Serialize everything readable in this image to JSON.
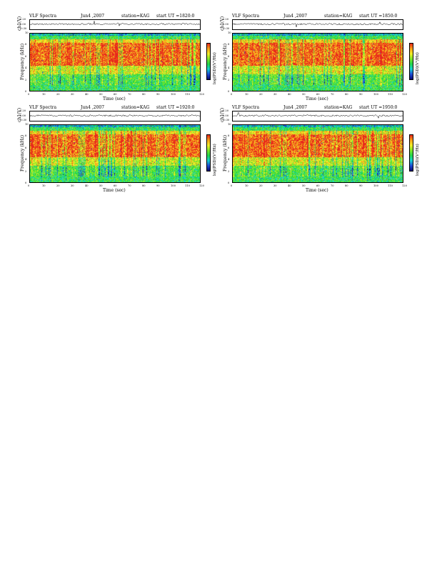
{
  "panels": [
    {
      "title": "VLF Spectra",
      "date": "Jun4 ,2007",
      "station": "station=KAG",
      "start": "start  UT  =1820:0",
      "seed": 11
    },
    {
      "title": "VLF Spectra",
      "date": "Jun4 ,2007",
      "station": "station=KAG",
      "start": "start  UT  =1850:0",
      "seed": 23
    },
    {
      "title": "VLF Spectra",
      "date": "Jun4 ,2007",
      "station": "station=KAG",
      "start": "start  UT  =1920:0",
      "seed": 37
    },
    {
      "title": "VLF Spectra",
      "date": "Jun4 ,2007",
      "station": "station=KAG",
      "start": "start  UT  =1950:0",
      "seed": 53
    }
  ],
  "wave_axis": {
    "label": "ch1(V)",
    "ticks": [
      "0.20",
      "0.00",
      "-0.30"
    ]
  },
  "freq_axis": {
    "label": "Frequency  (kHz)",
    "ticks": [
      "10",
      "8",
      "6",
      "4",
      "2",
      "0"
    ]
  },
  "time_axis": {
    "label": "Time  (sec)",
    "ticks": [
      "0",
      "10",
      "20",
      "30",
      "40",
      "50",
      "60",
      "70",
      "80",
      "90",
      "100",
      "110",
      "120"
    ]
  },
  "colorbar": {
    "label": "log(PSD)(V²/Hz)"
  },
  "colors": {
    "red": "#e8281c",
    "orange": "#f7a11a",
    "yellow": "#f4ee2a",
    "lime": "#7fe82a",
    "green": "#23d64b",
    "cyan": "#17d2d2",
    "blue": "#1f4bd6",
    "navy": "#0a0a6e"
  },
  "chart_data": [
    {
      "type": "heatmap",
      "title": "VLF Spectra  Jun4 ,2007  station=KAG  start UT =1820:0",
      "xlabel": "Time  (sec)",
      "ylabel": "Frequency  (kHz)",
      "xlim": [
        0,
        120
      ],
      "ylim": [
        0,
        10
      ]
    },
    {
      "type": "heatmap",
      "title": "VLF Spectra  Jun4 ,2007  station=KAG  start UT =1850:0",
      "xlabel": "Time  (sec)",
      "ylabel": "Frequency  (kHz)",
      "xlim": [
        0,
        120
      ],
      "ylim": [
        0,
        10
      ]
    },
    {
      "type": "heatmap",
      "title": "VLF Spectra  Jun4 ,2007  station=KAG  start UT =1920:0",
      "xlabel": "Time  (sec)",
      "ylabel": "Frequency  (kHz)",
      "xlim": [
        0,
        120
      ],
      "ylim": [
        0,
        10
      ]
    },
    {
      "type": "heatmap",
      "title": "VLF Spectra  Jun4 ,2007  station=KAG  start UT =1950:0",
      "xlabel": "Time  (sec)",
      "ylabel": "Frequency  (kHz)",
      "xlim": [
        0,
        120
      ],
      "ylim": [
        0,
        10
      ]
    }
  ]
}
